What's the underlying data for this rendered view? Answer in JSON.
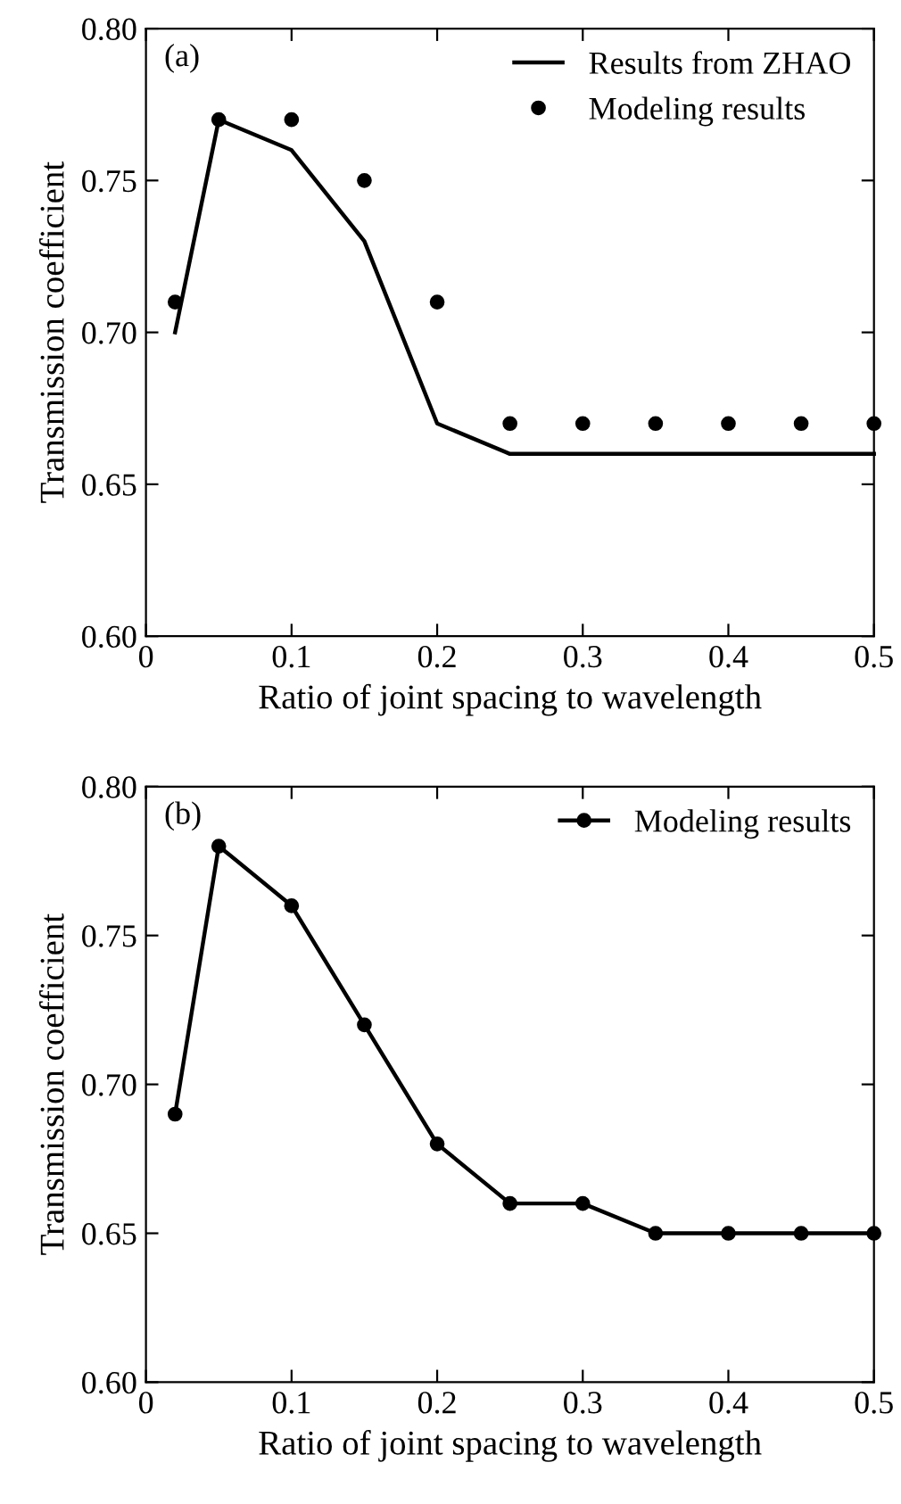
{
  "chart_data": [
    {
      "type": "line",
      "xlabel": "Ratio of joint spacing to wavelength",
      "ylabel": "Transmission coefficient",
      "annotations": [
        "(a)"
      ],
      "xlim": [
        0,
        0.5
      ],
      "ylim": [
        0.6,
        0.8
      ],
      "xticks": [
        0,
        0.1,
        0.2,
        0.3,
        0.4,
        0.5
      ],
      "yticks": [
        {
          "value": 0.6,
          "label": "0.60"
        },
        {
          "value": 0.65,
          "label": "0.65"
        },
        {
          "value": 0.7,
          "label": "0.70"
        },
        {
          "value": 0.75,
          "label": "0.75"
        },
        {
          "value": 0.8,
          "label": "0.80"
        }
      ],
      "legend": "top right",
      "series": [
        {
          "name": "Results from ZHAO",
          "color": "#000000",
          "marker": "none",
          "x": [
            0.02,
            0.05,
            0.1,
            0.15,
            0.2,
            0.25,
            0.3,
            0.35,
            0.4,
            0.45,
            0.5
          ],
          "values": [
            0.7,
            0.77,
            0.76,
            0.73,
            0.67,
            0.66,
            0.66,
            0.66,
            0.66,
            0.66,
            0.66
          ]
        },
        {
          "name": "Modeling results",
          "type": "scatter",
          "color": "#000000",
          "marker": "circle",
          "x": [
            0.02,
            0.05,
            0.1,
            0.15,
            0.2,
            0.25,
            0.3,
            0.35,
            0.4,
            0.45,
            0.5
          ],
          "values": [
            0.71,
            0.77,
            0.77,
            0.75,
            0.71,
            0.67,
            0.67,
            0.67,
            0.67,
            0.67,
            0.67
          ]
        }
      ]
    },
    {
      "type": "line",
      "xlabel": "Ratio of joint spacing to wavelength",
      "ylabel": "Transmission coefficient",
      "annotations": [
        "(b)"
      ],
      "xlim": [
        0,
        0.5
      ],
      "ylim": [
        0.6,
        0.8
      ],
      "xticks": [
        0,
        0.1,
        0.2,
        0.3,
        0.4,
        0.5
      ],
      "yticks": [
        {
          "value": 0.6,
          "label": "0.60"
        },
        {
          "value": 0.65,
          "label": "0.65"
        },
        {
          "value": 0.7,
          "label": "0.70"
        },
        {
          "value": 0.75,
          "label": "0.75"
        },
        {
          "value": 0.8,
          "label": "0.80"
        }
      ],
      "legend": "top right",
      "series": [
        {
          "name": "Modeling results",
          "color": "#000000",
          "marker": "circle",
          "x": [
            0.02,
            0.05,
            0.1,
            0.15,
            0.2,
            0.25,
            0.3,
            0.35,
            0.4,
            0.45,
            0.5
          ],
          "values": [
            0.69,
            0.78,
            0.76,
            0.72,
            0.68,
            0.66,
            0.66,
            0.65,
            0.65,
            0.65,
            0.65
          ]
        }
      ]
    }
  ]
}
